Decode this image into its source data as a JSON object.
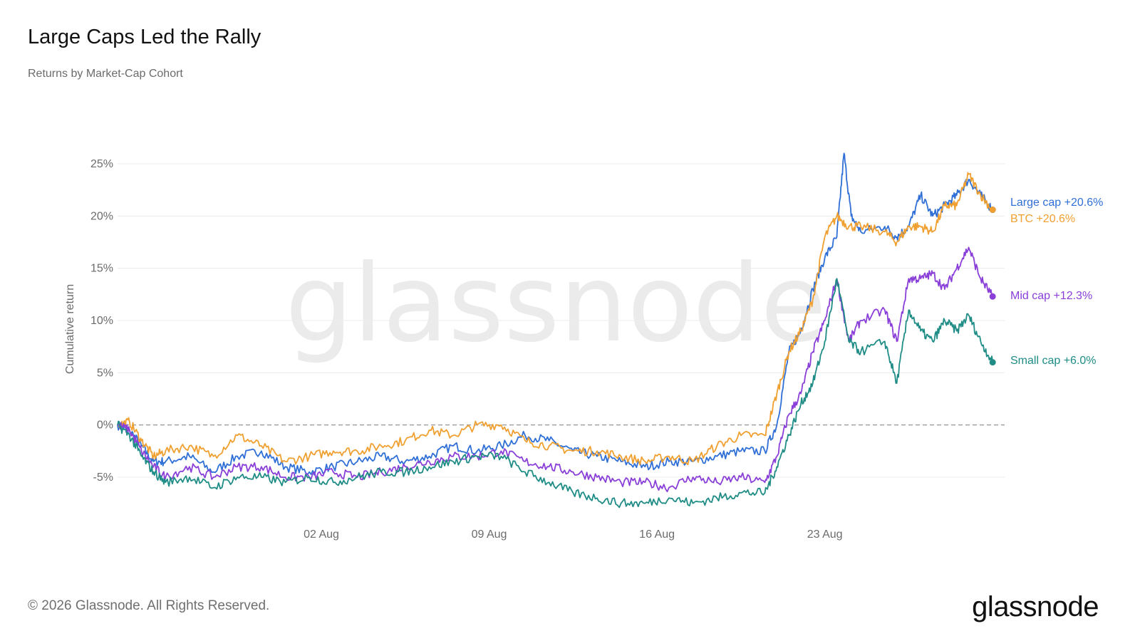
{
  "header": {
    "title": "Large Caps Led the Rally",
    "subtitle": "Returns by Market-Cap Cohort"
  },
  "footer": {
    "copyright": "© 2026 Glassnode. All Rights Reserved.",
    "logo_text": "glassnode"
  },
  "watermark": "glassnode",
  "chart_data": {
    "type": "line",
    "ylabel": "Cumulative return",
    "xlabel": "",
    "ylim": [
      -10,
      27
    ],
    "y_ticks": [
      {
        "value": 25,
        "label": "25%"
      },
      {
        "value": 20,
        "label": "20%"
      },
      {
        "value": 15,
        "label": "15%"
      },
      {
        "value": 10,
        "label": "10%"
      },
      {
        "value": 5,
        "label": "5%"
      },
      {
        "value": 0,
        "label": "0%"
      },
      {
        "value": -5,
        "label": "-5%"
      }
    ],
    "x_ticks": [
      {
        "value": 8.5,
        "label": "02 Aug"
      },
      {
        "value": 15.5,
        "label": "09 Aug"
      },
      {
        "value": 22.5,
        "label": "16 Aug"
      },
      {
        "value": 29.5,
        "label": "23 Aug"
      }
    ],
    "x_domain": [
      0,
      37
    ],
    "x_unit": "days (0 = 25 Jul)",
    "grid": true,
    "zero_line": "dashed",
    "series": [
      {
        "name": "Large cap",
        "end_label": "Large cap +20.6%",
        "color": "#2f6fd6",
        "points": [
          [
            0,
            0
          ],
          [
            0.5,
            -0.5
          ],
          [
            1,
            -2
          ],
          [
            1.5,
            -3.5
          ],
          [
            2,
            -3.5
          ],
          [
            3,
            -3
          ],
          [
            4,
            -4.5
          ],
          [
            5,
            -3
          ],
          [
            6,
            -2.5
          ],
          [
            7,
            -4
          ],
          [
            8,
            -4.5
          ],
          [
            9,
            -4
          ],
          [
            10,
            -3.5
          ],
          [
            11,
            -3
          ],
          [
            12,
            -3.5
          ],
          [
            13,
            -3
          ],
          [
            14,
            -2
          ],
          [
            15,
            -2.5
          ],
          [
            16,
            -2
          ],
          [
            17,
            -1
          ],
          [
            18,
            -1.5
          ],
          [
            19,
            -2.5
          ],
          [
            20,
            -3
          ],
          [
            21,
            -3.5
          ],
          [
            22,
            -4
          ],
          [
            23,
            -3.5
          ],
          [
            24,
            -3.5
          ],
          [
            25,
            -3
          ],
          [
            26,
            -2.5
          ],
          [
            27,
            -2.5
          ],
          [
            27.5,
            0
          ],
          [
            28,
            7
          ],
          [
            28.5,
            9
          ],
          [
            29,
            13
          ],
          [
            29.5,
            16
          ],
          [
            30,
            18
          ],
          [
            30.3,
            26
          ],
          [
            30.6,
            20
          ],
          [
            31,
            18.5
          ],
          [
            32,
            19
          ],
          [
            32.5,
            18
          ],
          [
            33,
            19
          ],
          [
            33.5,
            22
          ],
          [
            34,
            20
          ],
          [
            34.5,
            21
          ],
          [
            35,
            22
          ],
          [
            35.5,
            23.5
          ],
          [
            36,
            22
          ],
          [
            36.5,
            20.6
          ]
        ]
      },
      {
        "name": "BTC",
        "end_label": "BTC +20.6%",
        "color": "#f0a030",
        "points": [
          [
            0,
            0
          ],
          [
            0.5,
            0.3
          ],
          [
            1,
            -1.5
          ],
          [
            1.5,
            -3
          ],
          [
            2,
            -2.5
          ],
          [
            3,
            -2
          ],
          [
            4,
            -3
          ],
          [
            5,
            -1
          ],
          [
            6,
            -2
          ],
          [
            7,
            -3.5
          ],
          [
            8,
            -3
          ],
          [
            9,
            -2.5
          ],
          [
            10,
            -2.5
          ],
          [
            11,
            -2
          ],
          [
            12,
            -1.5
          ],
          [
            13,
            -0.5
          ],
          [
            14,
            -1
          ],
          [
            15,
            0
          ],
          [
            16,
            0
          ],
          [
            17,
            -1.5
          ],
          [
            18,
            -2
          ],
          [
            19,
            -2.5
          ],
          [
            20,
            -2.5
          ],
          [
            21,
            -3
          ],
          [
            22,
            -3.5
          ],
          [
            23,
            -3
          ],
          [
            24,
            -3.5
          ],
          [
            25,
            -2
          ],
          [
            26,
            -1
          ],
          [
            27,
            -1
          ],
          [
            27.5,
            3
          ],
          [
            28,
            7
          ],
          [
            28.5,
            9
          ],
          [
            29,
            12
          ],
          [
            29.5,
            18
          ],
          [
            30,
            20
          ],
          [
            30.5,
            19
          ],
          [
            31,
            19
          ],
          [
            32,
            18.5
          ],
          [
            32.5,
            17.5
          ],
          [
            33,
            19
          ],
          [
            33.5,
            19
          ],
          [
            34,
            18.5
          ],
          [
            34.5,
            21
          ],
          [
            35,
            21
          ],
          [
            35.5,
            24
          ],
          [
            36,
            22
          ],
          [
            36.5,
            20.6
          ]
        ]
      },
      {
        "name": "Mid cap",
        "end_label": "Mid cap +12.3%",
        "color": "#8a3fd8",
        "points": [
          [
            0,
            0
          ],
          [
            0.5,
            -0.5
          ],
          [
            1,
            -2.5
          ],
          [
            1.5,
            -4
          ],
          [
            2,
            -5
          ],
          [
            3,
            -4
          ],
          [
            4,
            -5
          ],
          [
            5,
            -4
          ],
          [
            6,
            -4
          ],
          [
            7,
            -5
          ],
          [
            8,
            -5
          ],
          [
            9,
            -4.5
          ],
          [
            10,
            -5
          ],
          [
            11,
            -4.5
          ],
          [
            12,
            -4
          ],
          [
            13,
            -3.5
          ],
          [
            14,
            -3
          ],
          [
            15,
            -3
          ],
          [
            16,
            -2.5
          ],
          [
            17,
            -3.5
          ],
          [
            18,
            -4
          ],
          [
            19,
            -4.5
          ],
          [
            20,
            -5
          ],
          [
            21,
            -5.5
          ],
          [
            22,
            -5.5
          ],
          [
            23,
            -6
          ],
          [
            24,
            -5
          ],
          [
            25,
            -5.5
          ],
          [
            26,
            -5
          ],
          [
            27,
            -5.5
          ],
          [
            27.5,
            -3
          ],
          [
            28,
            1
          ],
          [
            28.5,
            3
          ],
          [
            29,
            7
          ],
          [
            29.5,
            10
          ],
          [
            30,
            14
          ],
          [
            30.5,
            8
          ],
          [
            31,
            10
          ],
          [
            32,
            11
          ],
          [
            32.5,
            8
          ],
          [
            33,
            14
          ],
          [
            33.5,
            14
          ],
          [
            34,
            14.5
          ],
          [
            34.5,
            13
          ],
          [
            35,
            15
          ],
          [
            35.5,
            17
          ],
          [
            36,
            14
          ],
          [
            36.5,
            12.3
          ]
        ]
      },
      {
        "name": "Small cap",
        "end_label": "Small cap +6.0%",
        "color": "#1f8c86",
        "points": [
          [
            0,
            0
          ],
          [
            0.5,
            -1
          ],
          [
            1,
            -3
          ],
          [
            1.5,
            -4.5
          ],
          [
            2,
            -5.5
          ],
          [
            3,
            -5
          ],
          [
            4,
            -6
          ],
          [
            5,
            -5
          ],
          [
            6,
            -5
          ],
          [
            7,
            -5.5
          ],
          [
            8,
            -5
          ],
          [
            9,
            -5.5
          ],
          [
            10,
            -5
          ],
          [
            11,
            -4.5
          ],
          [
            12,
            -4.5
          ],
          [
            13,
            -4
          ],
          [
            14,
            -3.5
          ],
          [
            15,
            -3
          ],
          [
            16,
            -3
          ],
          [
            17,
            -4.5
          ],
          [
            18,
            -5.5
          ],
          [
            19,
            -6.5
          ],
          [
            20,
            -7
          ],
          [
            21,
            -7.5
          ],
          [
            22,
            -7.5
          ],
          [
            23,
            -7
          ],
          [
            24,
            -7.5
          ],
          [
            25,
            -7
          ],
          [
            26,
            -6.5
          ],
          [
            27,
            -6.5
          ],
          [
            27.5,
            -4
          ],
          [
            28,
            -1
          ],
          [
            28.5,
            2
          ],
          [
            29,
            4
          ],
          [
            29.5,
            8
          ],
          [
            30,
            14
          ],
          [
            30.5,
            8
          ],
          [
            31,
            7
          ],
          [
            32,
            8
          ],
          [
            32.5,
            4
          ],
          [
            33,
            11
          ],
          [
            33.5,
            9
          ],
          [
            34,
            8
          ],
          [
            34.5,
            10
          ],
          [
            35,
            9
          ],
          [
            35.5,
            10.5
          ],
          [
            36,
            8
          ],
          [
            36.5,
            6.0
          ]
        ]
      }
    ]
  }
}
